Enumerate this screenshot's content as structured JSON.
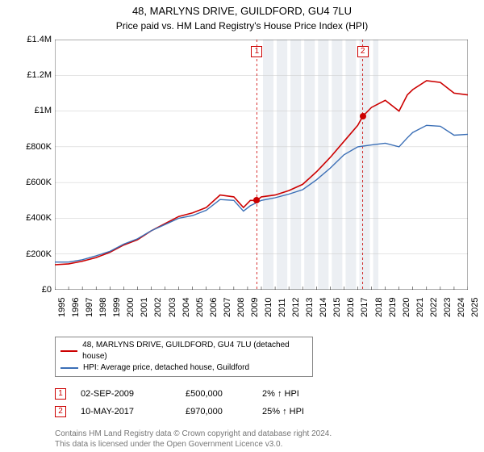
{
  "title": "48, MARLYNS DRIVE, GUILDFORD, GU4 7LU",
  "subtitle": "Price paid vs. HM Land Registry's House Price Index (HPI)",
  "chart": {
    "type": "line",
    "background_color": "#ffffff",
    "gridline_color": "#c8c8c8",
    "shaded_band": {
      "start_year": 2010,
      "end_year": 2018.5,
      "fill": "#eceff3"
    },
    "x": {
      "min": 1995,
      "max": 2025,
      "tick_step": 1,
      "label_fontsize": 11
    },
    "y": {
      "min": 0,
      "max": 1400000,
      "tick_step": 200000,
      "tick_labels": [
        "£0",
        "£200K",
        "£400K",
        "£600K",
        "£800K",
        "£1M",
        "£1.2M",
        "£1.4M"
      ],
      "label_fontsize": 11
    },
    "series": [
      {
        "name": "48, MARLYNS DRIVE, GUILDFORD, GU4 7LU (detached house)",
        "color": "#cc0000",
        "line_width": 1.6,
        "data": [
          [
            1995,
            140000
          ],
          [
            1996,
            145000
          ],
          [
            1997,
            160000
          ],
          [
            1998,
            180000
          ],
          [
            1999,
            210000
          ],
          [
            2000,
            250000
          ],
          [
            2001,
            280000
          ],
          [
            2002,
            330000
          ],
          [
            2003,
            370000
          ],
          [
            2004,
            410000
          ],
          [
            2005,
            430000
          ],
          [
            2006,
            460000
          ],
          [
            2007,
            530000
          ],
          [
            2008,
            520000
          ],
          [
            2008.7,
            460000
          ],
          [
            2009.2,
            500000
          ],
          [
            2009.67,
            500000
          ],
          [
            2010,
            520000
          ],
          [
            2011,
            530000
          ],
          [
            2012,
            555000
          ],
          [
            2013,
            590000
          ],
          [
            2014,
            660000
          ],
          [
            2015,
            740000
          ],
          [
            2016,
            830000
          ],
          [
            2017,
            920000
          ],
          [
            2017.36,
            970000
          ],
          [
            2018,
            1020000
          ],
          [
            2019,
            1060000
          ],
          [
            2020,
            1000000
          ],
          [
            2020.6,
            1090000
          ],
          [
            2021,
            1120000
          ],
          [
            2022,
            1170000
          ],
          [
            2023,
            1160000
          ],
          [
            2024,
            1100000
          ],
          [
            2025,
            1090000
          ]
        ]
      },
      {
        "name": "HPI: Average price, detached house, Guildford",
        "color": "#3b6fb6",
        "line_width": 1.4,
        "data": [
          [
            1995,
            155000
          ],
          [
            1996,
            155000
          ],
          [
            1997,
            168000
          ],
          [
            1998,
            190000
          ],
          [
            1999,
            215000
          ],
          [
            2000,
            255000
          ],
          [
            2001,
            285000
          ],
          [
            2002,
            330000
          ],
          [
            2003,
            365000
          ],
          [
            2004,
            400000
          ],
          [
            2005,
            415000
          ],
          [
            2006,
            445000
          ],
          [
            2007,
            505000
          ],
          [
            2008,
            500000
          ],
          [
            2008.7,
            440000
          ],
          [
            2009.2,
            470000
          ],
          [
            2010,
            500000
          ],
          [
            2011,
            515000
          ],
          [
            2012,
            535000
          ],
          [
            2013,
            560000
          ],
          [
            2014,
            615000
          ],
          [
            2015,
            680000
          ],
          [
            2016,
            755000
          ],
          [
            2017,
            800000
          ],
          [
            2018,
            810000
          ],
          [
            2019,
            820000
          ],
          [
            2020,
            800000
          ],
          [
            2020.6,
            850000
          ],
          [
            2021,
            880000
          ],
          [
            2022,
            920000
          ],
          [
            2023,
            915000
          ],
          [
            2024,
            865000
          ],
          [
            2025,
            870000
          ]
        ]
      }
    ],
    "sale_markers": [
      {
        "id": "1",
        "year": 2009.67,
        "price": 500000
      },
      {
        "id": "2",
        "year": 2017.36,
        "price": 970000
      }
    ]
  },
  "legend": [
    {
      "color": "#cc0000",
      "label": "48, MARLYNS DRIVE, GUILDFORD, GU4 7LU (detached house)"
    },
    {
      "color": "#3b6fb6",
      "label": "HPI: Average price, detached house, Guildford"
    }
  ],
  "sales": [
    {
      "id": "1",
      "date": "02-SEP-2009",
      "price": "£500,000",
      "hpi": "2% ↑ HPI"
    },
    {
      "id": "2",
      "date": "10-MAY-2017",
      "price": "£970,000",
      "hpi": "25% ↑ HPI"
    }
  ],
  "footer": {
    "line1": "Contains HM Land Registry data © Crown copyright and database right 2024.",
    "line2": "This data is licensed under the Open Government Licence v3.0."
  },
  "colors": {
    "sale_marker_border": "#cc0000",
    "sale_vline": "#cc0000"
  }
}
